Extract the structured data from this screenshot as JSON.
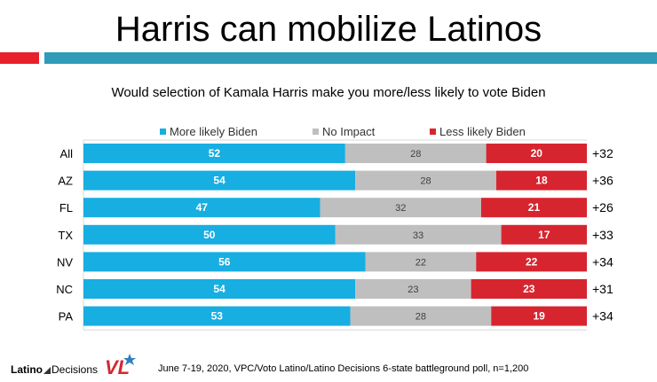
{
  "header": {
    "title": "Harris can mobilize Latinos",
    "accent_red": "#e8202a",
    "accent_blue": "#2f9bb8"
  },
  "chart_data": {
    "type": "bar",
    "stacked": true,
    "orientation": "horizontal",
    "title": "Would selection of Kamala Harris make you more/less likely to vote Biden",
    "categories": [
      "All",
      "AZ",
      "FL",
      "TX",
      "NV",
      "NC",
      "PA"
    ],
    "series": [
      {
        "name": "More likely Biden",
        "color": "#17aee2",
        "values": [
          52,
          54,
          47,
          50,
          56,
          54,
          53
        ]
      },
      {
        "name": "No Impact",
        "color": "#bfbfbf",
        "values": [
          28,
          28,
          32,
          33,
          22,
          23,
          28
        ]
      },
      {
        "name": "Less likely Biden",
        "color": "#d7252f",
        "values": [
          20,
          18,
          21,
          17,
          22,
          23,
          19
        ]
      }
    ],
    "net_labels": [
      "+32",
      "+36",
      "+26",
      "+33",
      "+34",
      "+31",
      "+34"
    ],
    "xlim": [
      0,
      100
    ],
    "legend_position": "top"
  },
  "footer": {
    "logo_left": "Latino",
    "logo_right": "Decisions",
    "vl_logo_text": "VL",
    "source": "June 7-19, 2020, VPC/Voto Latino/Latino Decisions 6-state battleground poll, n=1,200"
  }
}
